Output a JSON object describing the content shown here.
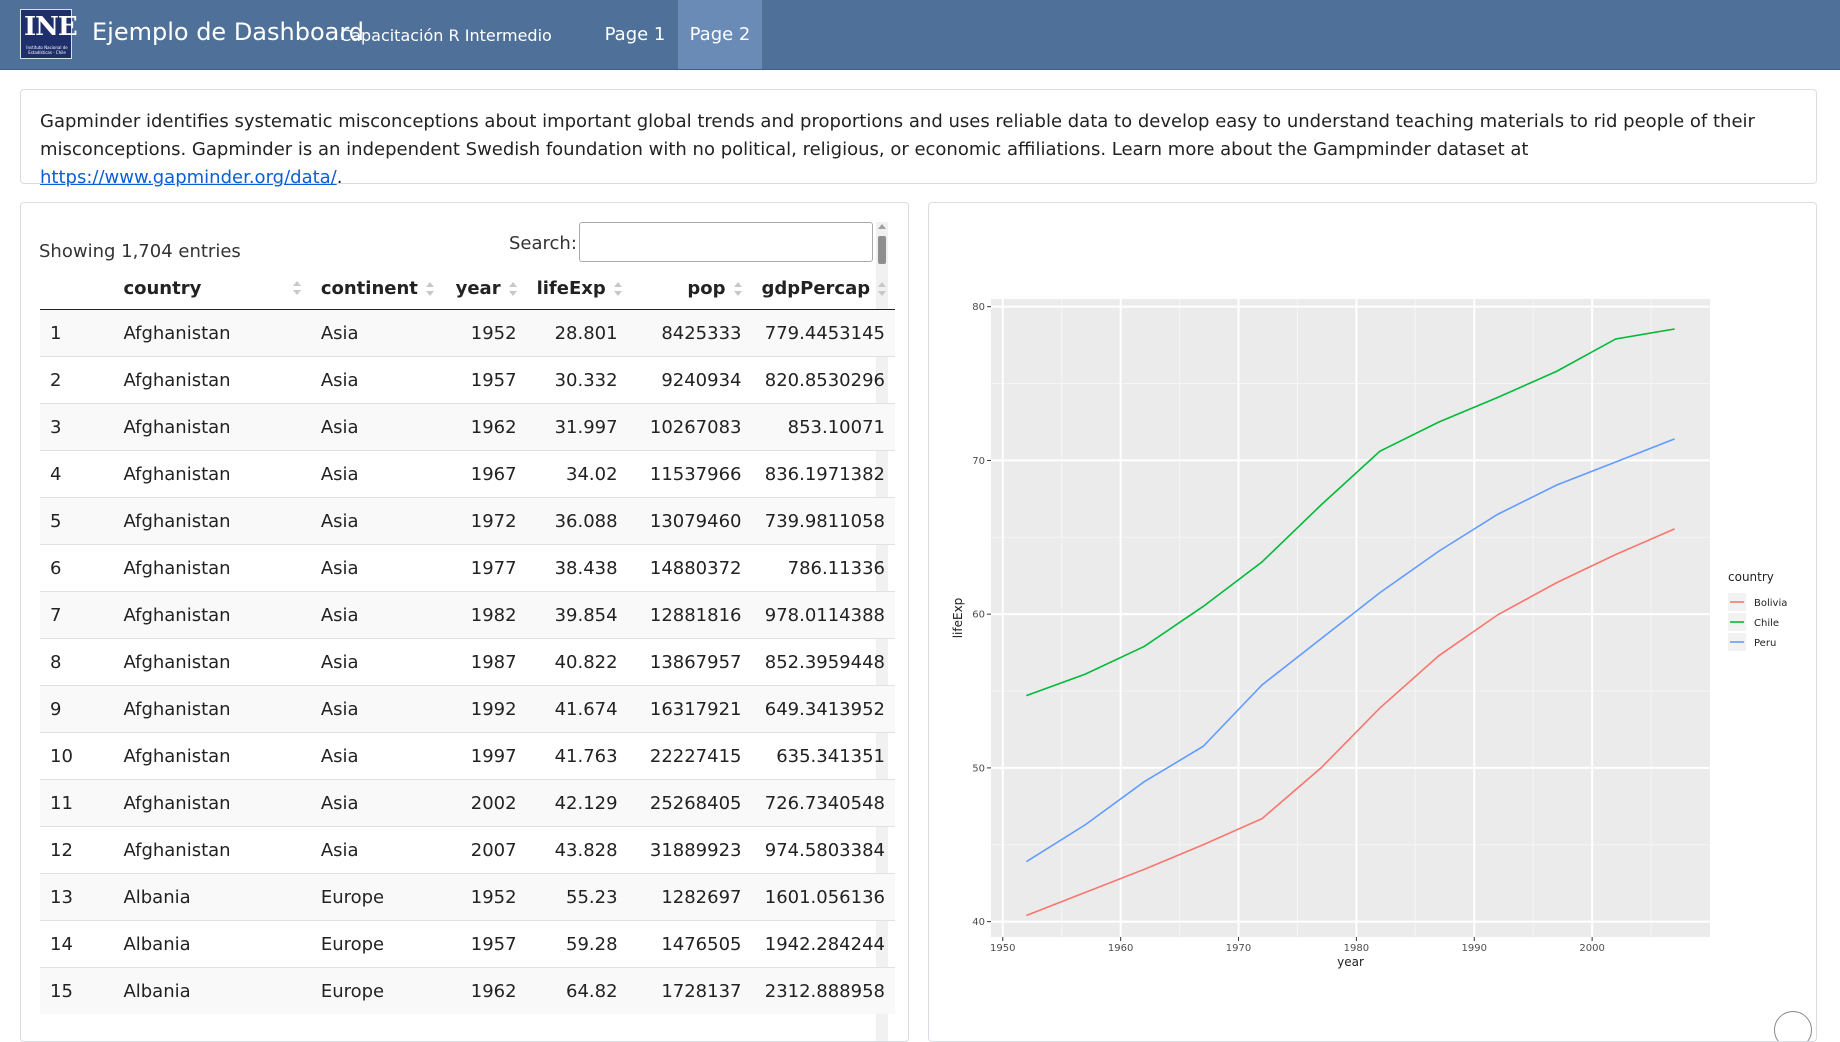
{
  "navbar": {
    "logo_mark": "INE",
    "logo_subtitle": "Instituto Nacional de Estadísticas · Chile",
    "title": "Ejemplo de Dashboard",
    "subtitle": "Capacitación R Intermedio",
    "tabs": [
      {
        "label": "Page 1",
        "active": false
      },
      {
        "label": "Page 2",
        "active": true
      }
    ],
    "colors": {
      "bar": "#4f7199",
      "active_tab": "#6a8bb5",
      "logo_bg": "#1f2f6b"
    }
  },
  "description": {
    "text": "Gapminder identifies systematic misconceptions about important global trends and proportions and uses reliable data to develop easy to understand teaching materials to rid people of their misconceptions. Gapminder is an independent Swedish foundation with no political, religious, or economic affiliations. Learn more about the Gampminder dataset at ",
    "link": "https://www.gapminder.org/data/",
    "suffix": "."
  },
  "table": {
    "info": "Showing 1,704 entries",
    "search_label": "Search:",
    "search_value": "",
    "columns": [
      "",
      "country",
      "continent",
      "year",
      "lifeExp",
      "pop",
      "gdpPercap"
    ],
    "rows": [
      [
        "1",
        "Afghanistan",
        "Asia",
        "1952",
        "28.801",
        "8425333",
        "779.4453145"
      ],
      [
        "2",
        "Afghanistan",
        "Asia",
        "1957",
        "30.332",
        "9240934",
        "820.8530296"
      ],
      [
        "3",
        "Afghanistan",
        "Asia",
        "1962",
        "31.997",
        "10267083",
        "853.10071"
      ],
      [
        "4",
        "Afghanistan",
        "Asia",
        "1967",
        "34.02",
        "11537966",
        "836.1971382"
      ],
      [
        "5",
        "Afghanistan",
        "Asia",
        "1972",
        "36.088",
        "13079460",
        "739.9811058"
      ],
      [
        "6",
        "Afghanistan",
        "Asia",
        "1977",
        "38.438",
        "14880372",
        "786.11336"
      ],
      [
        "7",
        "Afghanistan",
        "Asia",
        "1982",
        "39.854",
        "12881816",
        "978.0114388"
      ],
      [
        "8",
        "Afghanistan",
        "Asia",
        "1987",
        "40.822",
        "13867957",
        "852.3959448"
      ],
      [
        "9",
        "Afghanistan",
        "Asia",
        "1992",
        "41.674",
        "16317921",
        "649.3413952"
      ],
      [
        "10",
        "Afghanistan",
        "Asia",
        "1997",
        "41.763",
        "22227415",
        "635.341351"
      ],
      [
        "11",
        "Afghanistan",
        "Asia",
        "2002",
        "42.129",
        "25268405",
        "726.7340548"
      ],
      [
        "12",
        "Afghanistan",
        "Asia",
        "2007",
        "43.828",
        "31889923",
        "974.5803384"
      ],
      [
        "13",
        "Albania",
        "Europe",
        "1952",
        "55.23",
        "1282697",
        "1601.056136"
      ],
      [
        "14",
        "Albania",
        "Europe",
        "1957",
        "59.28",
        "1476505",
        "1942.284244"
      ],
      [
        "15",
        "Albania",
        "Europe",
        "1962",
        "64.82",
        "1728137",
        "2312.888958"
      ]
    ]
  },
  "chart_data": {
    "type": "line",
    "title": "",
    "xlabel": "year",
    "ylabel": "lifeExp",
    "xlim": [
      1949,
      2010
    ],
    "ylim": [
      39,
      80.5
    ],
    "x_ticks": [
      1950,
      1960,
      1970,
      1980,
      1990,
      2000
    ],
    "y_ticks": [
      40,
      50,
      60,
      70,
      80
    ],
    "grid": true,
    "legend_title": "country",
    "legend_position": "right",
    "x": [
      1952,
      1957,
      1962,
      1967,
      1972,
      1977,
      1982,
      1987,
      1992,
      1997,
      2002,
      2007
    ],
    "series": [
      {
        "name": "Bolivia",
        "color": "#f8766d",
        "values": [
          40.4,
          41.9,
          43.4,
          45.0,
          46.7,
          50.0,
          53.9,
          57.3,
          59.96,
          62.05,
          63.88,
          65.55
        ]
      },
      {
        "name": "Chile",
        "color": "#00ba38",
        "values": [
          54.7,
          56.1,
          57.9,
          60.5,
          63.4,
          67.1,
          70.6,
          72.5,
          74.1,
          75.8,
          77.9,
          78.55
        ]
      },
      {
        "name": "Peru",
        "color": "#619cff",
        "values": [
          43.9,
          46.3,
          49.1,
          51.4,
          55.4,
          58.4,
          61.4,
          64.1,
          66.5,
          68.4,
          69.9,
          71.4
        ]
      }
    ]
  }
}
